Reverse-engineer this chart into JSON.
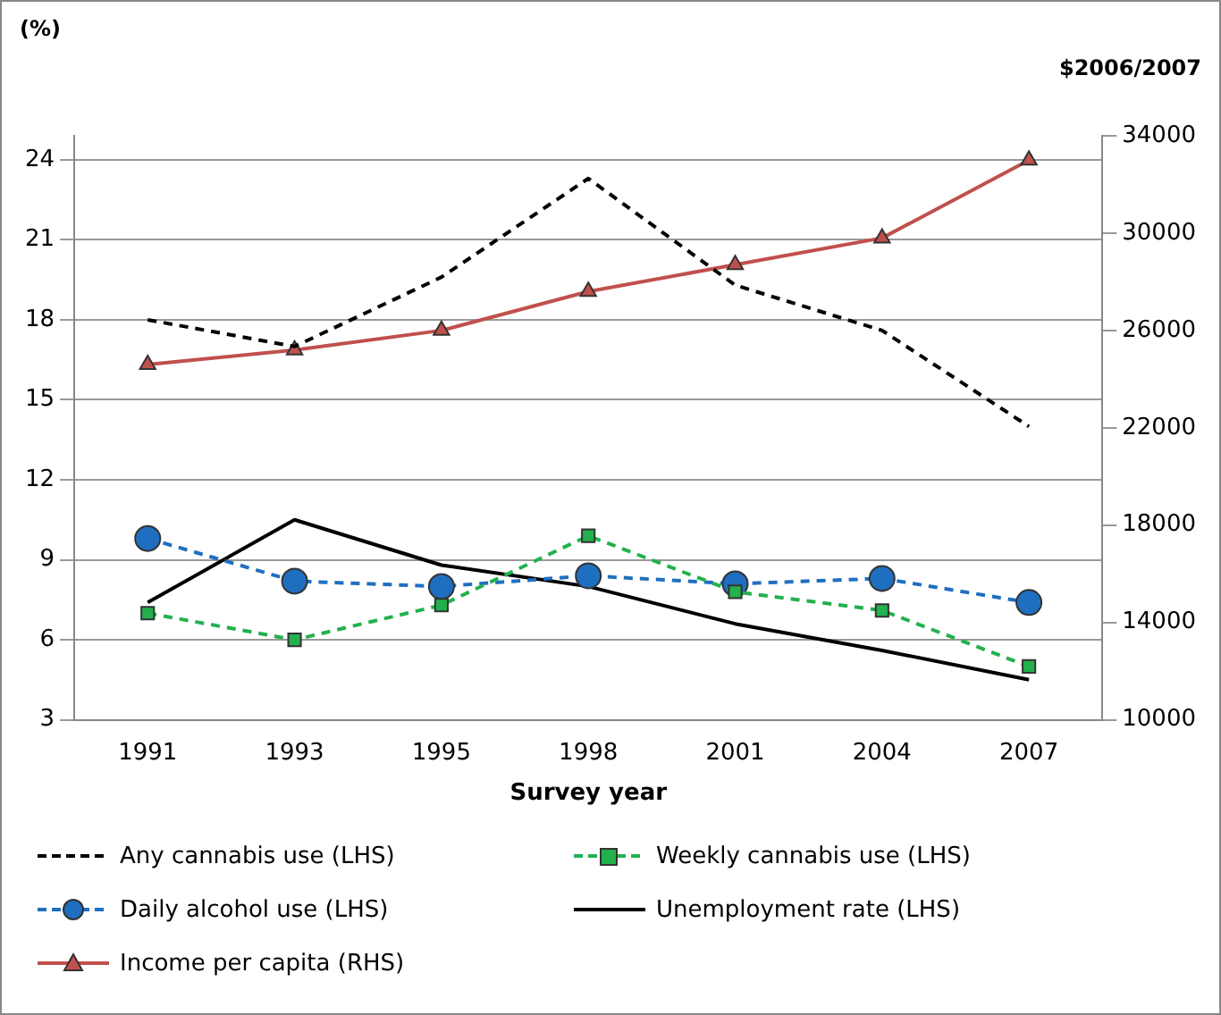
{
  "chart_data": {
    "type": "line",
    "xlabel": "Survey year",
    "ylabel": "(%)",
    "y2label": "$2006/2007",
    "categories": [
      "1991",
      "1993",
      "1995",
      "1998",
      "2001",
      "2004",
      "2007"
    ],
    "series": [
      {
        "name": "Any cannabis use (LHS)",
        "color": "#000000",
        "line_style": "dashed",
        "marker": "none",
        "values": [
          18.0,
          17.0,
          19.6,
          23.3,
          19.3,
          17.6,
          14.0
        ]
      },
      {
        "name": "Weekly cannabis use (LHS)",
        "color": "#22b14c",
        "line_style": "dashed",
        "marker": "square",
        "values": [
          7.0,
          6.0,
          7.3,
          9.9,
          7.8,
          7.1,
          5.0
        ]
      },
      {
        "name": "Daily alcohol use (LHS)",
        "color": "#1f6fc0",
        "line_style": "dashed",
        "marker": "circle",
        "values": [
          9.8,
          8.2,
          8.0,
          8.4,
          8.1,
          8.3,
          7.4
        ]
      },
      {
        "name": "Unemployment rate (LHS)",
        "color": "#000000",
        "line_style": "solid",
        "marker": "none",
        "values": [
          7.4,
          10.5,
          8.8,
          8.0,
          6.6,
          5.6,
          4.5
        ]
      },
      {
        "name": "Income per capita (RHS)",
        "color": "#c0504d",
        "line_style": "solid",
        "marker": "triangle",
        "axis": "y2",
        "values": [
          24600,
          25200,
          26000,
          27600,
          28700,
          29800,
          33000
        ]
      }
    ],
    "ylim": [
      3,
      24.9
    ],
    "yticks": [
      3,
      6,
      9,
      12,
      15,
      18,
      21,
      24
    ],
    "y2lim": [
      10000,
      34000
    ],
    "y2ticks": [
      10000,
      14000,
      18000,
      22000,
      26000,
      30000,
      34000
    ],
    "grid": "y",
    "legend": "bottom"
  }
}
